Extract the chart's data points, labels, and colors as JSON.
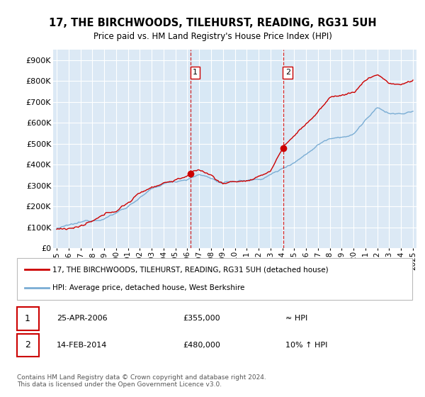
{
  "title": "17, THE BIRCHWOODS, TILEHURST, READING, RG31 5UH",
  "subtitle": "Price paid vs. HM Land Registry's House Price Index (HPI)",
  "legend_line1": "17, THE BIRCHWOODS, TILEHURST, READING, RG31 5UH (detached house)",
  "legend_line2": "HPI: Average price, detached house, West Berkshire",
  "annotation1_date": "25-APR-2006",
  "annotation1_price": "£355,000",
  "annotation1_hpi": "≈ HPI",
  "annotation1_year": 2006.3,
  "annotation1_value": 355000,
  "annotation2_date": "14-FEB-2014",
  "annotation2_price": "£480,000",
  "annotation2_hpi": "10% ↑ HPI",
  "annotation2_year": 2014.1,
  "annotation2_value": 480000,
  "footer": "Contains HM Land Registry data © Crown copyright and database right 2024.\nThis data is licensed under the Open Government Licence v3.0.",
  "price_color": "#cc0000",
  "hpi_color": "#7aadd4",
  "shade_color": "#d8e8f5",
  "background_color": "#ffffff",
  "plot_bg_color": "#dce9f5",
  "grid_color": "#ffffff",
  "ylim": [
    0,
    950000
  ],
  "yticks": [
    0,
    100000,
    200000,
    300000,
    400000,
    500000,
    600000,
    700000,
    800000,
    900000
  ],
  "ytick_labels": [
    "£0",
    "£100K",
    "£200K",
    "£300K",
    "£400K",
    "£500K",
    "£600K",
    "£700K",
    "£800K",
    "£900K"
  ],
  "xlim_start": 1994.7,
  "xlim_end": 2025.3,
  "xtick_years": [
    1995,
    1996,
    1997,
    1998,
    1999,
    2000,
    2001,
    2002,
    2003,
    2004,
    2005,
    2006,
    2007,
    2008,
    2009,
    2010,
    2011,
    2012,
    2013,
    2014,
    2015,
    2016,
    2017,
    2018,
    2019,
    2020,
    2021,
    2022,
    2023,
    2024,
    2025
  ]
}
